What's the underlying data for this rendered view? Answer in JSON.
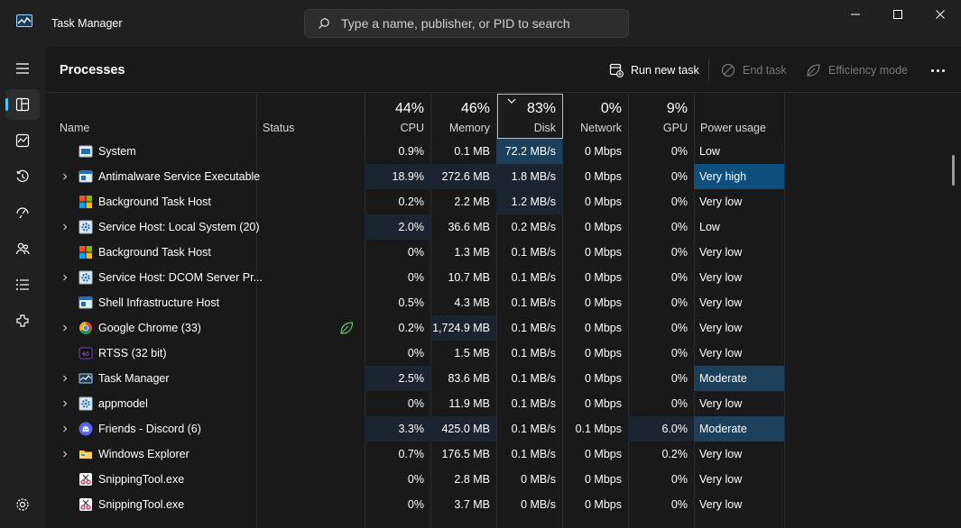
{
  "app": {
    "title": "Task Manager",
    "search_placeholder": "Type a name, publisher, or PID to search"
  },
  "window_controls": [
    "minimize-icon",
    "maximize-icon",
    "close-icon"
  ],
  "nav": {
    "items": [
      {
        "name": "hamburger-menu",
        "icon": "menu-icon"
      },
      {
        "name": "processes",
        "icon": "processes-icon",
        "active": true
      },
      {
        "name": "performance",
        "icon": "performance-icon"
      },
      {
        "name": "app-history",
        "icon": "history-icon"
      },
      {
        "name": "startup-apps",
        "icon": "startup-icon"
      },
      {
        "name": "users",
        "icon": "users-icon"
      },
      {
        "name": "details",
        "icon": "details-icon"
      },
      {
        "name": "services",
        "icon": "services-icon"
      }
    ],
    "settings_icon": "settings-icon"
  },
  "page": {
    "title": "Processes",
    "run_new_task": "Run new task",
    "end_task": "End task",
    "efficiency_mode": "Efficiency mode"
  },
  "columns": {
    "name": "Name",
    "status": "Status",
    "cpu": {
      "pct": "44%",
      "label": "CPU"
    },
    "memory": {
      "pct": "46%",
      "label": "Memory"
    },
    "disk": {
      "pct": "83%",
      "label": "Disk"
    },
    "network": {
      "pct": "0%",
      "label": "Network"
    },
    "gpu": {
      "pct": "9%",
      "label": "GPU"
    },
    "power": "Power usage"
  },
  "colors": {
    "heat_low": "#1b2531",
    "heat_mid": "#1c3f5c",
    "heat_high": "#0f4f7d",
    "accent": "#4cc2ff"
  },
  "processes": [
    {
      "name": "System",
      "icon": "system-icon",
      "expand": false,
      "leaf": false,
      "cpu": "0.9%",
      "mem": "0.1 MB",
      "disk": "72.2 MB/s",
      "net": "0 Mbps",
      "gpu": "0%",
      "power": "Low",
      "hl": {
        "cpu": 0,
        "mem": 0,
        "disk": 2,
        "net": 0,
        "gpu": 0,
        "pow": 0
      }
    },
    {
      "name": "Antimalware Service Executable",
      "icon": "window-icon",
      "expand": true,
      "leaf": false,
      "cpu": "18.9%",
      "mem": "272.6 MB",
      "disk": "1.8 MB/s",
      "net": "0 Mbps",
      "gpu": "0%",
      "power": "Very high",
      "hl": {
        "cpu": 1,
        "mem": 1,
        "disk": 1,
        "net": 0,
        "gpu": 0,
        "pow": 3
      }
    },
    {
      "name": "Background Task Host",
      "icon": "windows-logo-icon",
      "expand": false,
      "leaf": false,
      "cpu": "0.2%",
      "mem": "2.2 MB",
      "disk": "1.2 MB/s",
      "net": "0 Mbps",
      "gpu": "0%",
      "power": "Very low",
      "hl": {
        "cpu": 0,
        "mem": 0,
        "disk": 1,
        "net": 0,
        "gpu": 0,
        "pow": 0
      }
    },
    {
      "name": "Service Host: Local System (20)",
      "icon": "service-gear-icon",
      "expand": true,
      "leaf": false,
      "cpu": "2.0%",
      "mem": "36.6 MB",
      "disk": "0.2 MB/s",
      "net": "0 Mbps",
      "gpu": "0%",
      "power": "Low",
      "hl": {
        "cpu": 1,
        "mem": 0,
        "disk": 0,
        "net": 0,
        "gpu": 0,
        "pow": 0
      }
    },
    {
      "name": "Background Task Host",
      "icon": "windows-logo-icon",
      "expand": false,
      "leaf": false,
      "cpu": "0%",
      "mem": "1.3 MB",
      "disk": "0.1 MB/s",
      "net": "0 Mbps",
      "gpu": "0%",
      "power": "Very low",
      "hl": {
        "cpu": 0,
        "mem": 0,
        "disk": 0,
        "net": 0,
        "gpu": 0,
        "pow": 0
      }
    },
    {
      "name": "Service Host: DCOM Server Pr...",
      "icon": "service-gear-icon",
      "expand": true,
      "leaf": false,
      "cpu": "0%",
      "mem": "10.7 MB",
      "disk": "0.1 MB/s",
      "net": "0 Mbps",
      "gpu": "0%",
      "power": "Very low",
      "hl": {
        "cpu": 0,
        "mem": 0,
        "disk": 0,
        "net": 0,
        "gpu": 0,
        "pow": 0
      }
    },
    {
      "name": "Shell Infrastructure Host",
      "icon": "window-icon",
      "expand": false,
      "leaf": false,
      "cpu": "0.5%",
      "mem": "4.3 MB",
      "disk": "0.1 MB/s",
      "net": "0 Mbps",
      "gpu": "0%",
      "power": "Very low",
      "hl": {
        "cpu": 0,
        "mem": 0,
        "disk": 0,
        "net": 0,
        "gpu": 0,
        "pow": 0
      }
    },
    {
      "name": "Google Chrome (33)",
      "icon": "chrome-icon",
      "expand": true,
      "leaf": true,
      "cpu": "0.2%",
      "mem": "1,724.9 MB",
      "disk": "0.1 MB/s",
      "net": "0 Mbps",
      "gpu": "0%",
      "power": "Very low",
      "hl": {
        "cpu": 0,
        "mem": 1,
        "disk": 0,
        "net": 0,
        "gpu": 0,
        "pow": 0
      }
    },
    {
      "name": "RTSS (32 bit)",
      "icon": "rtss-icon",
      "expand": false,
      "leaf": false,
      "cpu": "0%",
      "mem": "1.5 MB",
      "disk": "0.1 MB/s",
      "net": "0 Mbps",
      "gpu": "0%",
      "power": "Very low",
      "hl": {
        "cpu": 0,
        "mem": 0,
        "disk": 0,
        "net": 0,
        "gpu": 0,
        "pow": 0
      }
    },
    {
      "name": "Task Manager",
      "icon": "task-manager-icon",
      "expand": true,
      "leaf": false,
      "cpu": "2.5%",
      "mem": "83.6 MB",
      "disk": "0.1 MB/s",
      "net": "0 Mbps",
      "gpu": "0%",
      "power": "Moderate",
      "hl": {
        "cpu": 1,
        "mem": 0,
        "disk": 0,
        "net": 0,
        "gpu": 0,
        "pow": 2
      }
    },
    {
      "name": "appmodel",
      "icon": "service-gear-icon",
      "expand": true,
      "leaf": false,
      "cpu": "0%",
      "mem": "11.9 MB",
      "disk": "0.1 MB/s",
      "net": "0 Mbps",
      "gpu": "0%",
      "power": "Very low",
      "hl": {
        "cpu": 0,
        "mem": 0,
        "disk": 0,
        "net": 0,
        "gpu": 0,
        "pow": 0
      }
    },
    {
      "name": "Friends - Discord (6)",
      "icon": "discord-icon",
      "expand": true,
      "leaf": false,
      "cpu": "3.3%",
      "mem": "425.0 MB",
      "disk": "0.1 MB/s",
      "net": "0.1 Mbps",
      "gpu": "6.0%",
      "power": "Moderate",
      "hl": {
        "cpu": 1,
        "mem": 1,
        "disk": 0,
        "net": 0,
        "gpu": 1,
        "pow": 2
      }
    },
    {
      "name": "Windows Explorer",
      "icon": "folder-icon",
      "expand": true,
      "leaf": false,
      "cpu": "0.7%",
      "mem": "176.5 MB",
      "disk": "0.1 MB/s",
      "net": "0 Mbps",
      "gpu": "0.2%",
      "power": "Very low",
      "hl": {
        "cpu": 0,
        "mem": 0,
        "disk": 0,
        "net": 0,
        "gpu": 0,
        "pow": 0
      }
    },
    {
      "name": "SnippingTool.exe",
      "icon": "snipping-icon",
      "expand": false,
      "leaf": false,
      "cpu": "0%",
      "mem": "2.8 MB",
      "disk": "0 MB/s",
      "net": "0 Mbps",
      "gpu": "0%",
      "power": "Very low",
      "hl": {
        "cpu": 0,
        "mem": 0,
        "disk": 0,
        "net": 0,
        "gpu": 0,
        "pow": 0
      }
    },
    {
      "name": "SnippingTool.exe",
      "icon": "snipping-icon",
      "expand": false,
      "leaf": false,
      "cpu": "0%",
      "mem": "3.7 MB",
      "disk": "0 MB/s",
      "net": "0 Mbps",
      "gpu": "0%",
      "power": "Very low",
      "hl": {
        "cpu": 0,
        "mem": 0,
        "disk": 0,
        "net": 0,
        "gpu": 0,
        "pow": 0
      }
    }
  ]
}
